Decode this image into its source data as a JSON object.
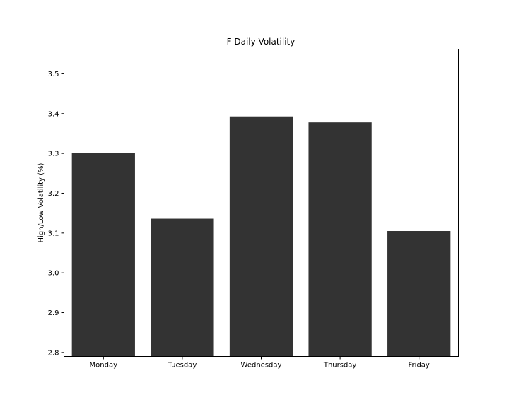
{
  "chart_data": {
    "type": "bar",
    "title": "F Daily Volatility",
    "xlabel": "",
    "ylabel": "High/Low Volatility (%)",
    "categories": [
      "Monday",
      "Tuesday",
      "Wednesday",
      "Thursday",
      "Friday"
    ],
    "values": [
      3.302,
      3.136,
      3.393,
      3.378,
      3.105
    ],
    "ylim": [
      2.79,
      3.562
    ],
    "yticks": [
      "2.8",
      "2.9",
      "3.0",
      "3.1",
      "3.2",
      "3.3",
      "3.4",
      "3.5"
    ],
    "bar_color": "#333333",
    "grid": false,
    "legend": "none"
  }
}
